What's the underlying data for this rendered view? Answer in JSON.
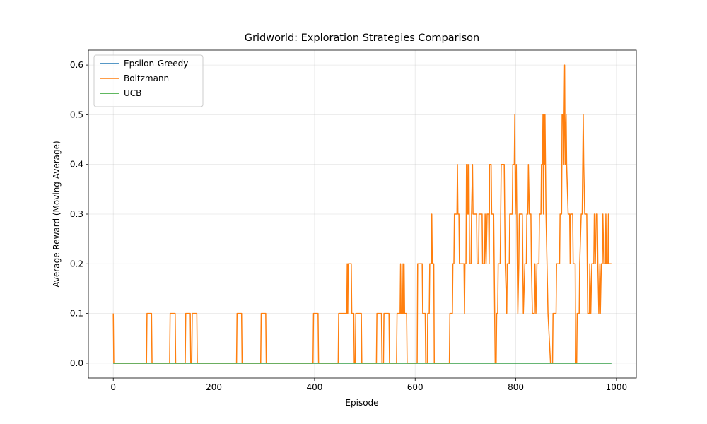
{
  "chart_data": {
    "type": "line",
    "title": "Gridworld: Exploration Strategies Comparison",
    "x_label": "Episode",
    "y_label": "Average Reward (Moving Average)",
    "xlim": [
      -49.5,
      1039.5
    ],
    "ylim": [
      -0.03,
      0.63
    ],
    "xticks": [
      0,
      200,
      400,
      600,
      800,
      1000
    ],
    "yticks": [
      {
        "value": 0,
        "label": "0.0"
      },
      0.1,
      0.2,
      0.3,
      0.4,
      0.5,
      0.6
    ],
    "grid": true,
    "legend": "upper left",
    "series": [
      {
        "name": "Epsilon-Greedy",
        "color": "#1f77b4",
        "x": [
          0,
          990
        ],
        "values": [
          0,
          0
        ]
      },
      {
        "name": "Boltzmann",
        "color": "#ff7f0e",
        "x": [
          0,
          1,
          66,
          67,
          76,
          77,
          112,
          113,
          123,
          124,
          143,
          144,
          153,
          154,
          156,
          157,
          166,
          167,
          245,
          246,
          255,
          256,
          293,
          294,
          303,
          304,
          397,
          398,
          407,
          408,
          447,
          448,
          464,
          465,
          466,
          467,
          473,
          474,
          478,
          479,
          481,
          482,
          493,
          494,
          523,
          524,
          533,
          534,
          537,
          538,
          548,
          549,
          563,
          564,
          570,
          571,
          572,
          575,
          576,
          577,
          578,
          579,
          583,
          584,
          604,
          605,
          614,
          615,
          620,
          621,
          624,
          625,
          628,
          629,
          632,
          633,
          634,
          637,
          638,
          668,
          669,
          674,
          675,
          677,
          678,
          683,
          684,
          685,
          687,
          688,
          697,
          698,
          699,
          701,
          702,
          704,
          705,
          706,
          707,
          708,
          711,
          712,
          714,
          715,
          722,
          723,
          726,
          727,
          733,
          734,
          738,
          739,
          741,
          743,
          746,
          747,
          748,
          751,
          752,
          756,
          757,
          759,
          761,
          762,
          764,
          765,
          769,
          770,
          771,
          777,
          778,
          779,
          782,
          783,
          787,
          788,
          793,
          794,
          797,
          798,
          799,
          801,
          802,
          803,
          804,
          806,
          807,
          813,
          814,
          815,
          818,
          821,
          822,
          824,
          825,
          827,
          830,
          831,
          833,
          837,
          838,
          840,
          842,
          846,
          847,
          850,
          851,
          853,
          854,
          855,
          856,
          857,
          858,
          860,
          862,
          864,
          869,
          873,
          874,
          880,
          881,
          887,
          888,
          891,
          892,
          894,
          895,
          897,
          898,
          900,
          901,
          904,
          907,
          908,
          909,
          913,
          914,
          918,
          919,
          921,
          922,
          926,
          927,
          930,
          932,
          933,
          934,
          935,
          937,
          941,
          942,
          943,
          946,
          947,
          949,
          951,
          955,
          956,
          958,
          960,
          962,
          963,
          965,
          967,
          968,
          970,
          972,
          973,
          975,
          978,
          979,
          980,
          983,
          984,
          985,
          990
        ],
        "values": [
          0.1,
          0,
          0,
          0.1,
          0.1,
          0,
          0,
          0.1,
          0.1,
          0,
          0,
          0.1,
          0.1,
          0,
          0,
          0.1,
          0.1,
          0,
          0,
          0.1,
          0.1,
          0,
          0,
          0.1,
          0.1,
          0,
          0,
          0.1,
          0.1,
          0,
          0,
          0.1,
          0.1,
          0.2,
          0.1,
          0.2,
          0.2,
          0.1,
          0.1,
          0,
          0,
          0.1,
          0.1,
          0,
          0,
          0.1,
          0.1,
          0,
          0,
          0.1,
          0.1,
          0,
          0,
          0.1,
          0.1,
          0.2,
          0.1,
          0.1,
          0.2,
          0.1,
          0.2,
          0.1,
          0.1,
          0,
          0,
          0.2,
          0.2,
          0.1,
          0.1,
          0,
          0,
          0.1,
          0.1,
          0.2,
          0.2,
          0.3,
          0.2,
          0.2,
          0,
          0,
          0.1,
          0.1,
          0.2,
          0.2,
          0.3,
          0.3,
          0.4,
          0.3,
          0.3,
          0.2,
          0.2,
          0.1,
          0.2,
          0.2,
          0.4,
          0.3,
          0.4,
          0.3,
          0.4,
          0.2,
          0.2,
          0.3,
          0.4,
          0.3,
          0.3,
          0.2,
          0.2,
          0.3,
          0.3,
          0.2,
          0.2,
          0.3,
          0.2,
          0.3,
          0.3,
          0.2,
          0.4,
          0.4,
          0.3,
          0.3,
          0.2,
          0,
          0,
          0.1,
          0.1,
          0.2,
          0.2,
          0.3,
          0.4,
          0.4,
          0.3,
          0.2,
          0.1,
          0.2,
          0.2,
          0.3,
          0.3,
          0.4,
          0.4,
          0.5,
          0.3,
          0.4,
          0.3,
          0.2,
          0.1,
          0.2,
          0.3,
          0.3,
          0.2,
          0.1,
          0.2,
          0.2,
          0.3,
          0.3,
          0.4,
          0.3,
          0.3,
          0.2,
          0.1,
          0.1,
          0.2,
          0.1,
          0.2,
          0.2,
          0.3,
          0.3,
          0.4,
          0.4,
          0.5,
          0.3,
          0.5,
          0.4,
          0.5,
          0.3,
          0.2,
          0.1,
          0,
          0,
          0.1,
          0.1,
          0.2,
          0.2,
          0.3,
          0.3,
          0.5,
          0.5,
          0.4,
          0.6,
          0.4,
          0.5,
          0.4,
          0.3,
          0.3,
          0.2,
          0.3,
          0.3,
          0.2,
          0.2,
          0,
          0,
          0.1,
          0.1,
          0.2,
          0.3,
          0.3,
          0.4,
          0.5,
          0.4,
          0.3,
          0.3,
          0.2,
          0.1,
          0.1,
          0.2,
          0.1,
          0.2,
          0.2,
          0.3,
          0.2,
          0.3,
          0.3,
          0.2,
          0.1,
          0.2,
          0.1,
          0.2,
          0.2,
          0.3,
          0.2,
          0.2,
          0.3,
          0.2,
          0.2,
          0.3,
          0.2,
          0.2
        ]
      },
      {
        "name": "UCB",
        "color": "#2ca02c",
        "x": [
          0,
          990
        ],
        "values": [
          0,
          0
        ]
      }
    ]
  }
}
